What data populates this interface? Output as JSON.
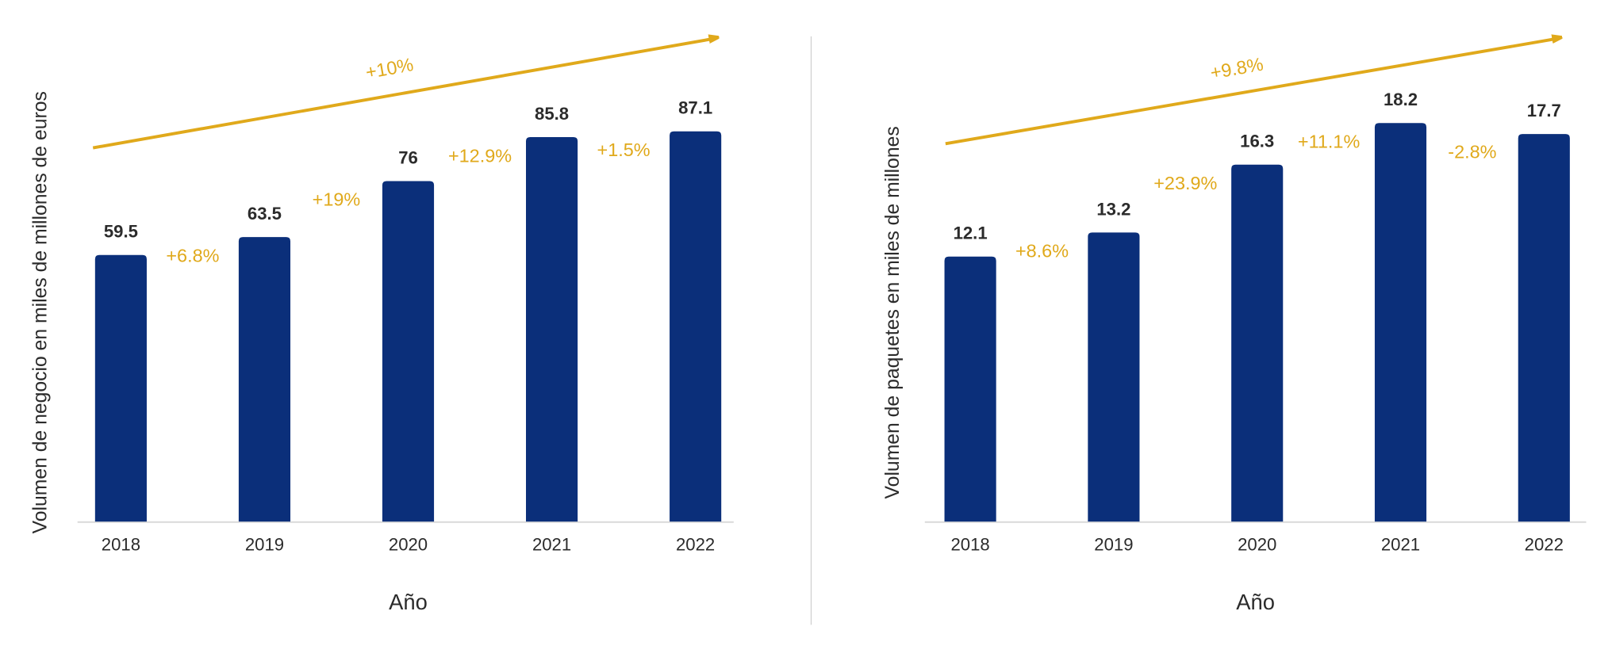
{
  "colors": {
    "bar": "#0b2f7a",
    "accent": "#e0a91b",
    "axis": "#d9d9d9",
    "divider": "#d0d0d0"
  },
  "chart_data": [
    {
      "type": "bar",
      "categories": [
        "2018",
        "2019",
        "2020",
        "2021",
        "2022"
      ],
      "values": [
        59.5,
        63.5,
        76,
        85.8,
        87.1
      ],
      "value_labels": [
        "59.5",
        "63.5",
        "76",
        "85.8",
        "87.1"
      ],
      "growth_labels": [
        "+6.8%",
        "+19%",
        "+12.9%",
        "+1.5%"
      ],
      "trend_label": "+10%",
      "xlabel": "Año",
      "ylabel": "Volumen de negocio en miles de millones de euros",
      "ylim": [
        0,
        87.1
      ],
      "grid": false
    },
    {
      "type": "bar",
      "categories": [
        "2018",
        "2019",
        "2020",
        "2021",
        "2022"
      ],
      "values": [
        12.1,
        13.2,
        16.3,
        18.2,
        17.7
      ],
      "value_labels": [
        "12.1",
        "13.2",
        "16.3",
        "18.2",
        "17.7"
      ],
      "growth_labels": [
        "+8.6%",
        "+23.9%",
        "+11.1%",
        "-2.8%"
      ],
      "trend_label": "+9.8%",
      "xlabel": "Año",
      "ylabel": "Volumen de paquetes en miles de millones",
      "ylim": [
        0,
        18.2
      ],
      "grid": false
    }
  ]
}
